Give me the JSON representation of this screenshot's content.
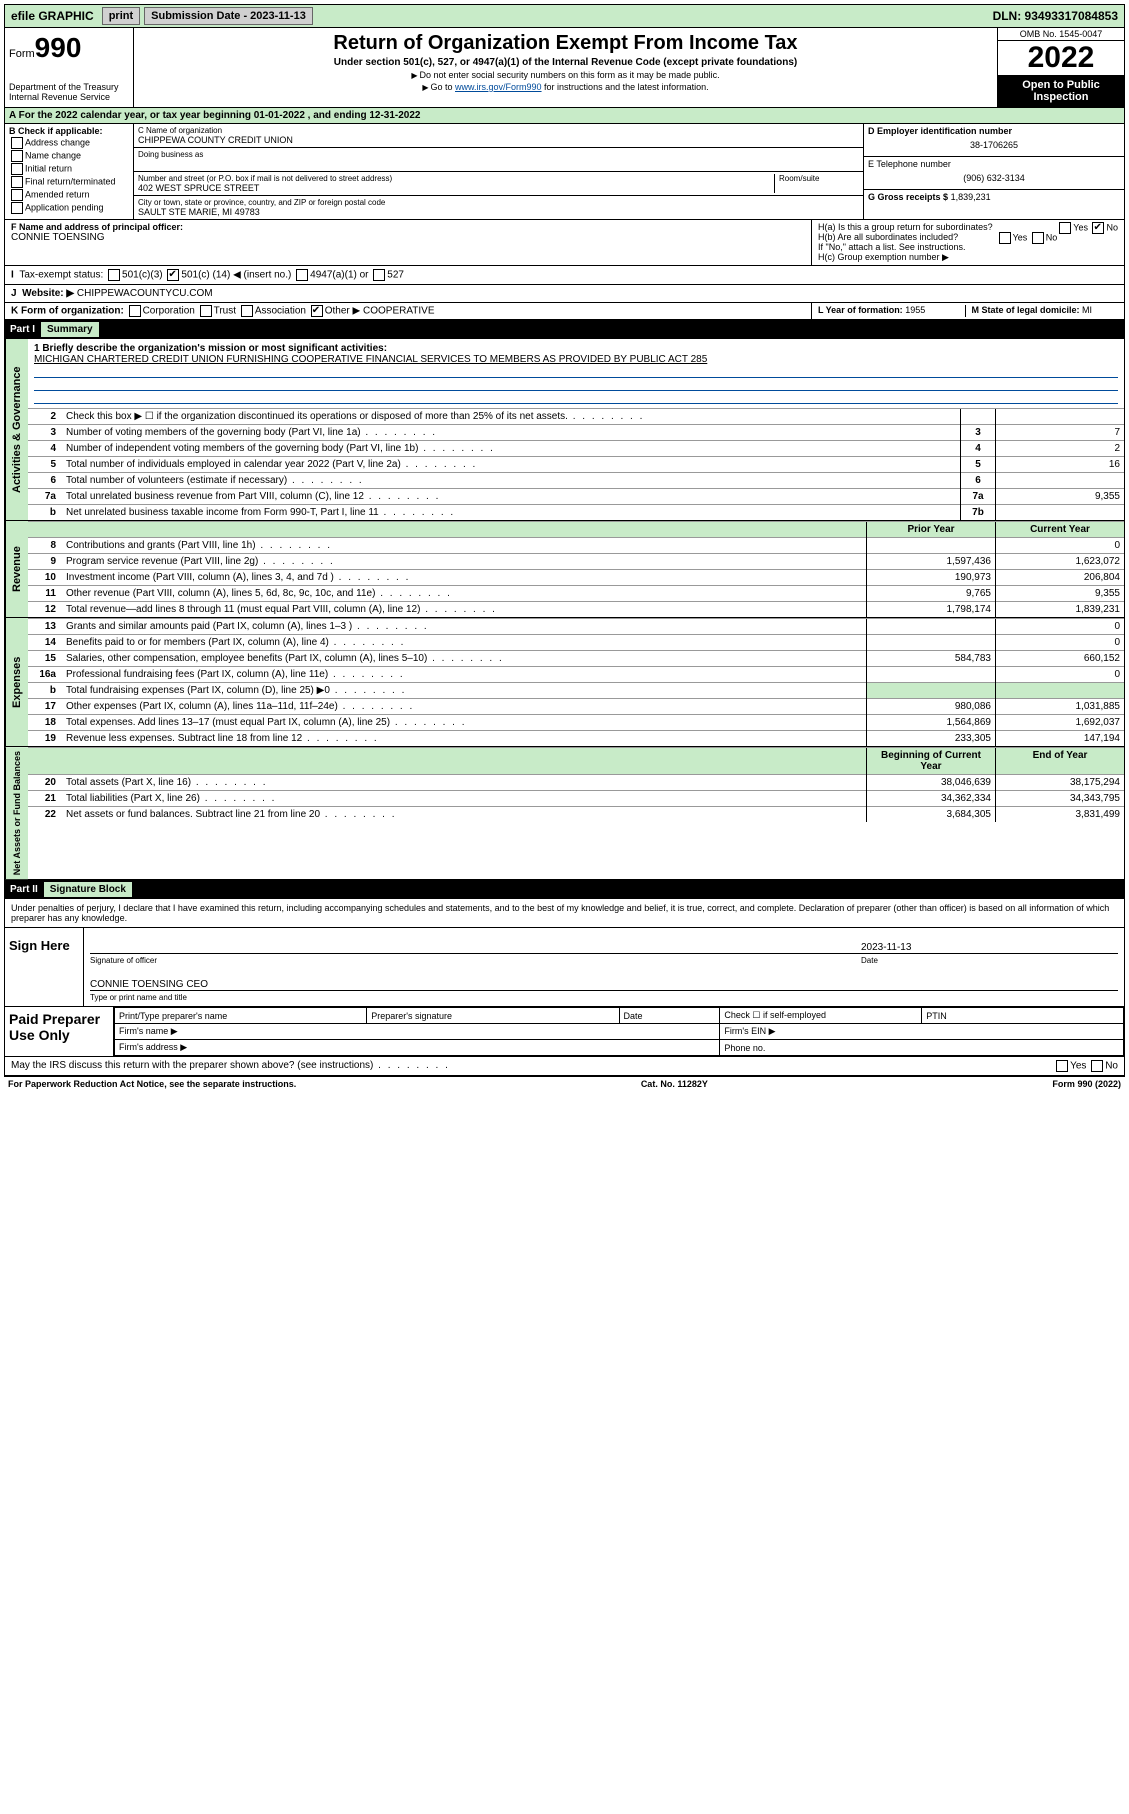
{
  "topbar": {
    "efile": "efile GRAPHIC",
    "print": "print",
    "sub_date_label": "Submission Date - 2023-11-13",
    "dln": "DLN: 93493317084853"
  },
  "header": {
    "form_prefix": "Form",
    "form_num": "990",
    "dept": "Department of the Treasury",
    "irs": "Internal Revenue Service",
    "title": "Return of Organization Exempt From Income Tax",
    "subtitle": "Under section 501(c), 527, or 4947(a)(1) of the Internal Revenue Code (except private foundations)",
    "hint1": "Do not enter social security numbers on this form as it may be made public.",
    "hint2_pre": "Go to ",
    "hint2_link": "www.irs.gov/Form990",
    "hint2_post": " for instructions and the latest information.",
    "omb": "OMB No. 1545-0047",
    "year": "2022",
    "inspect": "Open to Public Inspection"
  },
  "period": "For the 2022 calendar year, or tax year beginning 01-01-2022   , and ending 12-31-2022",
  "sectionB": {
    "label": "B Check if applicable:",
    "opts": [
      "Address change",
      "Name change",
      "Initial return",
      "Final return/terminated",
      "Amended return",
      "Application pending"
    ]
  },
  "sectionC": {
    "name_label": "C Name of organization",
    "name": "CHIPPEWA COUNTY CREDIT UNION",
    "dba_label": "Doing business as",
    "addr_label": "Number and street (or P.O. box if mail is not delivered to street address)",
    "room_label": "Room/suite",
    "addr": "402 WEST SPRUCE STREET",
    "city_label": "City or town, state or province, country, and ZIP or foreign postal code",
    "city": "SAULT STE MARIE, MI  49783"
  },
  "sectionD": {
    "ein_label": "D Employer identification number",
    "ein": "38-1706265",
    "phone_label": "E Telephone number",
    "phone": "(906) 632-3134",
    "gross_label": "G Gross receipts $",
    "gross": "1,839,231"
  },
  "sectionF": {
    "label": "F Name and address of principal officer:",
    "name": "CONNIE TOENSING"
  },
  "sectionH": {
    "a": "H(a)  Is this a group return for subordinates?",
    "a_yes": "Yes",
    "a_no": "No",
    "b": "H(b)  Are all subordinates included?",
    "b_yes": "Yes",
    "b_no": "No",
    "b_note": "If \"No,\" attach a list. See instructions.",
    "c": "H(c)  Group exemption number ▶"
  },
  "sectionI": {
    "label": "Tax-exempt status:",
    "opt1": "501(c)(3)",
    "opt2_pre": "501(c) (",
    "opt2_num": "14",
    "opt2_post": ") ◀ (insert no.)",
    "opt3": "4947(a)(1) or",
    "opt4": "527"
  },
  "sectionJ": {
    "label": "Website: ▶",
    "value": "CHIPPEWACOUNTYCU.COM"
  },
  "sectionK": {
    "label": "K Form of organization:",
    "opts": [
      "Corporation",
      "Trust",
      "Association",
      "Other ▶"
    ],
    "other": "COOPERATIVE"
  },
  "sectionL": {
    "label": "L Year of formation:",
    "value": "1955"
  },
  "sectionM": {
    "label": "M State of legal domicile:",
    "value": "MI"
  },
  "part1": {
    "label": "Part I",
    "title": "Summary",
    "mission_label": "1  Briefly describe the organization's mission or most significant activities:",
    "mission": "MICHIGAN CHARTERED CREDIT UNION FURNISHING COOPERATIVE FINANCIAL SERVICES TO MEMBERS AS PROVIDED BY PUBLIC ACT 285",
    "side1": "Activities & Governance",
    "side2": "Revenue",
    "side3": "Expenses",
    "side4": "Net Assets or Fund Balances",
    "col_prior": "Prior Year",
    "col_current": "Current Year",
    "col_begin": "Beginning of Current Year",
    "col_end": "End of Year",
    "lines_gov": [
      {
        "n": "2",
        "t": "Check this box ▶ ☐  if the organization discontinued its operations or disposed of more than 25% of its net assets.",
        "box": "",
        "v": ""
      },
      {
        "n": "3",
        "t": "Number of voting members of the governing body (Part VI, line 1a)",
        "box": "3",
        "v": "7"
      },
      {
        "n": "4",
        "t": "Number of independent voting members of the governing body (Part VI, line 1b)",
        "box": "4",
        "v": "2"
      },
      {
        "n": "5",
        "t": "Total number of individuals employed in calendar year 2022 (Part V, line 2a)",
        "box": "5",
        "v": "16"
      },
      {
        "n": "6",
        "t": "Total number of volunteers (estimate if necessary)",
        "box": "6",
        "v": ""
      },
      {
        "n": "7a",
        "t": "Total unrelated business revenue from Part VIII, column (C), line 12",
        "box": "7a",
        "v": "9,355"
      },
      {
        "n": "b",
        "t": "Net unrelated business taxable income from Form 990-T, Part I, line 11",
        "box": "7b",
        "v": ""
      }
    ],
    "lines_rev": [
      {
        "n": "8",
        "t": "Contributions and grants (Part VIII, line 1h)",
        "p": "",
        "c": "0"
      },
      {
        "n": "9",
        "t": "Program service revenue (Part VIII, line 2g)",
        "p": "1,597,436",
        "c": "1,623,072"
      },
      {
        "n": "10",
        "t": "Investment income (Part VIII, column (A), lines 3, 4, and 7d )",
        "p": "190,973",
        "c": "206,804"
      },
      {
        "n": "11",
        "t": "Other revenue (Part VIII, column (A), lines 5, 6d, 8c, 9c, 10c, and 11e)",
        "p": "9,765",
        "c": "9,355"
      },
      {
        "n": "12",
        "t": "Total revenue—add lines 8 through 11 (must equal Part VIII, column (A), line 12)",
        "p": "1,798,174",
        "c": "1,839,231"
      }
    ],
    "lines_exp": [
      {
        "n": "13",
        "t": "Grants and similar amounts paid (Part IX, column (A), lines 1–3 )",
        "p": "",
        "c": "0"
      },
      {
        "n": "14",
        "t": "Benefits paid to or for members (Part IX, column (A), line 4)",
        "p": "",
        "c": "0"
      },
      {
        "n": "15",
        "t": "Salaries, other compensation, employee benefits (Part IX, column (A), lines 5–10)",
        "p": "584,783",
        "c": "660,152"
      },
      {
        "n": "16a",
        "t": "Professional fundraising fees (Part IX, column (A), line 11e)",
        "p": "",
        "c": "0"
      },
      {
        "n": "b",
        "t": "Total fundraising expenses (Part IX, column (D), line 25) ▶0",
        "p": "—",
        "c": "—"
      },
      {
        "n": "17",
        "t": "Other expenses (Part IX, column (A), lines 11a–11d, 11f–24e)",
        "p": "980,086",
        "c": "1,031,885"
      },
      {
        "n": "18",
        "t": "Total expenses. Add lines 13–17 (must equal Part IX, column (A), line 25)",
        "p": "1,564,869",
        "c": "1,692,037"
      },
      {
        "n": "19",
        "t": "Revenue less expenses. Subtract line 18 from line 12",
        "p": "233,305",
        "c": "147,194"
      }
    ],
    "lines_net": [
      {
        "n": "20",
        "t": "Total assets (Part X, line 16)",
        "p": "38,046,639",
        "c": "38,175,294"
      },
      {
        "n": "21",
        "t": "Total liabilities (Part X, line 26)",
        "p": "34,362,334",
        "c": "34,343,795"
      },
      {
        "n": "22",
        "t": "Net assets or fund balances. Subtract line 21 from line 20",
        "p": "3,684,305",
        "c": "3,831,499"
      }
    ]
  },
  "part2": {
    "label": "Part II",
    "title": "Signature Block",
    "decl": "Under penalties of perjury, I declare that I have examined this return, including accompanying schedules and statements, and to the best of my knowledge and belief, it is true, correct, and complete. Declaration of preparer (other than officer) is based on all information of which preparer has any knowledge.",
    "sign_here": "Sign Here",
    "sig_officer": "Signature of officer",
    "sig_date_label": "Date",
    "sig_date": "2023-11-13",
    "sig_name": "CONNIE TOENSING CEO",
    "sig_name_label": "Type or print name and title",
    "paid": "Paid Preparer Use Only",
    "p_name": "Print/Type preparer's name",
    "p_sig": "Preparer's signature",
    "p_date": "Date",
    "p_self": "Check ☐ if self-employed",
    "p_ptin": "PTIN",
    "p_firm": "Firm's name  ▶",
    "p_ein": "Firm's EIN ▶",
    "p_addr": "Firm's address ▶",
    "p_phone": "Phone no.",
    "may_irs": "May the IRS discuss this return with the preparer shown above? (see instructions)",
    "may_yes": "Yes",
    "may_no": "No"
  },
  "footer": {
    "left": "For Paperwork Reduction Act Notice, see the separate instructions.",
    "mid": "Cat. No. 11282Y",
    "right": "Form 990 (2022)"
  }
}
